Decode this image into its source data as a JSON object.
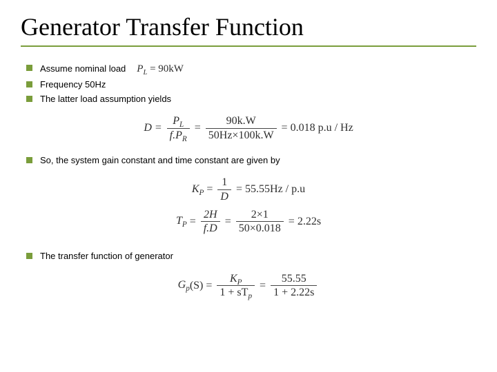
{
  "title": "Generator Transfer Function",
  "accent_color": "#7a9d3b",
  "rule_color": "#7a9d3b",
  "body_fontsize": 13,
  "title_fontsize": 36,
  "bullets": {
    "b1_text": "Assume nominal load",
    "b1_eq_lhs": "P",
    "b1_eq_sub": "L",
    "b1_eq_rhs": " = 90kW",
    "b2": "Frequency 50Hz",
    "b3": "The latter load assumption yields",
    "b4": "So, the system gain constant and time constant are given by",
    "b5": "The transfer function of generator"
  },
  "eq_D": {
    "lhs": "D = ",
    "f1_num_a": "P",
    "f1_num_sub": "L",
    "f1_den_a": "f.P",
    "f1_den_sub": "R",
    "mid": " = ",
    "f2_num": "90k.W",
    "f2_den": "50Hz×100k.W",
    "rhs": " = 0.018 p.u / Hz"
  },
  "eq_Kp": {
    "lhs_a": "K",
    "lhs_sub": "P",
    "lhs_b": " = ",
    "f_num": "1",
    "f_den": "D",
    "rhs": " = 55.55Hz / p.u"
  },
  "eq_Tp": {
    "lhs_a": "T",
    "lhs_sub": "P",
    "lhs_b": " = ",
    "f1_num": "2H",
    "f1_den": "f.D",
    "mid": " = ",
    "f2_num": "2×1",
    "f2_den": "50×0.018",
    "rhs": " = 2.22s"
  },
  "eq_Gp": {
    "lhs_a": "G",
    "lhs_sub": "p",
    "lhs_b": "(S) = ",
    "f1_num_a": "K",
    "f1_num_sub": "P",
    "f1_den_a": "1 + sT",
    "f1_den_sub": "p",
    "mid": " = ",
    "f2_num": "55.55",
    "f2_den": "1 + 2.22s"
  }
}
